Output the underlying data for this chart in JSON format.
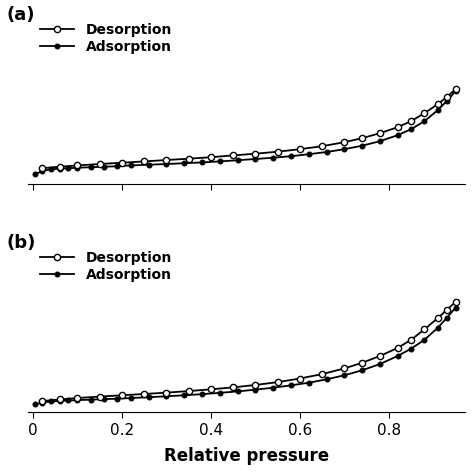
{
  "panel_labels": [
    "(a)",
    "(b)"
  ],
  "xlabel": "Relative pressure",
  "legend_desorption": "Desorption",
  "legend_adsorption": "Adsorption",
  "background_color": "#ffffff",
  "line_color": "#000000",
  "panel_a": {
    "ads_x": [
      0.005,
      0.02,
      0.04,
      0.06,
      0.08,
      0.1,
      0.13,
      0.16,
      0.19,
      0.22,
      0.26,
      0.3,
      0.34,
      0.38,
      0.42,
      0.46,
      0.5,
      0.54,
      0.58,
      0.62,
      0.66,
      0.7,
      0.74,
      0.78,
      0.82,
      0.85,
      0.88,
      0.91,
      0.93,
      0.95
    ],
    "ads_y": [
      4.5,
      4.8,
      5.0,
      5.05,
      5.1,
      5.15,
      5.2,
      5.25,
      5.3,
      5.38,
      5.45,
      5.52,
      5.6,
      5.68,
      5.78,
      5.9,
      6.02,
      6.15,
      6.3,
      6.5,
      6.72,
      7.0,
      7.35,
      7.8,
      8.4,
      9.0,
      9.8,
      10.9,
      11.8,
      12.8
    ],
    "des_x": [
      0.02,
      0.06,
      0.1,
      0.15,
      0.2,
      0.25,
      0.3,
      0.35,
      0.4,
      0.45,
      0.5,
      0.55,
      0.6,
      0.65,
      0.7,
      0.74,
      0.78,
      0.82,
      0.85,
      0.88,
      0.91,
      0.93,
      0.95
    ],
    "des_y": [
      5.1,
      5.25,
      5.38,
      5.52,
      5.65,
      5.78,
      5.92,
      6.05,
      6.2,
      6.38,
      6.55,
      6.75,
      7.0,
      7.3,
      7.7,
      8.1,
      8.6,
      9.2,
      9.8,
      10.6,
      11.5,
      12.2,
      13.0
    ],
    "ylim": [
      3.5,
      20
    ],
    "yticks": []
  },
  "panel_b": {
    "ads_x": [
      0.005,
      0.02,
      0.04,
      0.06,
      0.08,
      0.1,
      0.13,
      0.16,
      0.19,
      0.22,
      0.26,
      0.3,
      0.34,
      0.38,
      0.42,
      0.46,
      0.5,
      0.54,
      0.58,
      0.62,
      0.66,
      0.7,
      0.74,
      0.78,
      0.82,
      0.85,
      0.88,
      0.91,
      0.93,
      0.95
    ],
    "ads_y": [
      5.5,
      5.7,
      5.85,
      5.92,
      5.98,
      6.02,
      6.08,
      6.14,
      6.2,
      6.28,
      6.38,
      6.5,
      6.62,
      6.76,
      6.92,
      7.1,
      7.32,
      7.56,
      7.85,
      8.18,
      8.6,
      9.1,
      9.72,
      10.5,
      11.5,
      12.4,
      13.5,
      15.0,
      16.2,
      17.5
    ],
    "des_x": [
      0.02,
      0.06,
      0.1,
      0.15,
      0.2,
      0.25,
      0.3,
      0.35,
      0.4,
      0.45,
      0.5,
      0.55,
      0.6,
      0.65,
      0.7,
      0.74,
      0.78,
      0.82,
      0.85,
      0.88,
      0.91,
      0.93,
      0.95
    ],
    "des_y": [
      5.9,
      6.1,
      6.28,
      6.46,
      6.62,
      6.78,
      6.95,
      7.14,
      7.36,
      7.6,
      7.9,
      8.25,
      8.7,
      9.25,
      9.95,
      10.65,
      11.5,
      12.5,
      13.5,
      14.8,
      16.2,
      17.2,
      18.2
    ],
    "ylim": [
      4.5,
      25
    ],
    "yticks": []
  },
  "xlim": [
    -0.01,
    0.97
  ],
  "xticks": [
    0.0,
    0.2,
    0.4,
    0.6,
    0.8
  ],
  "xticklabels": [
    "0",
    "0.2",
    "0.4",
    "0.6",
    "0.8"
  ]
}
